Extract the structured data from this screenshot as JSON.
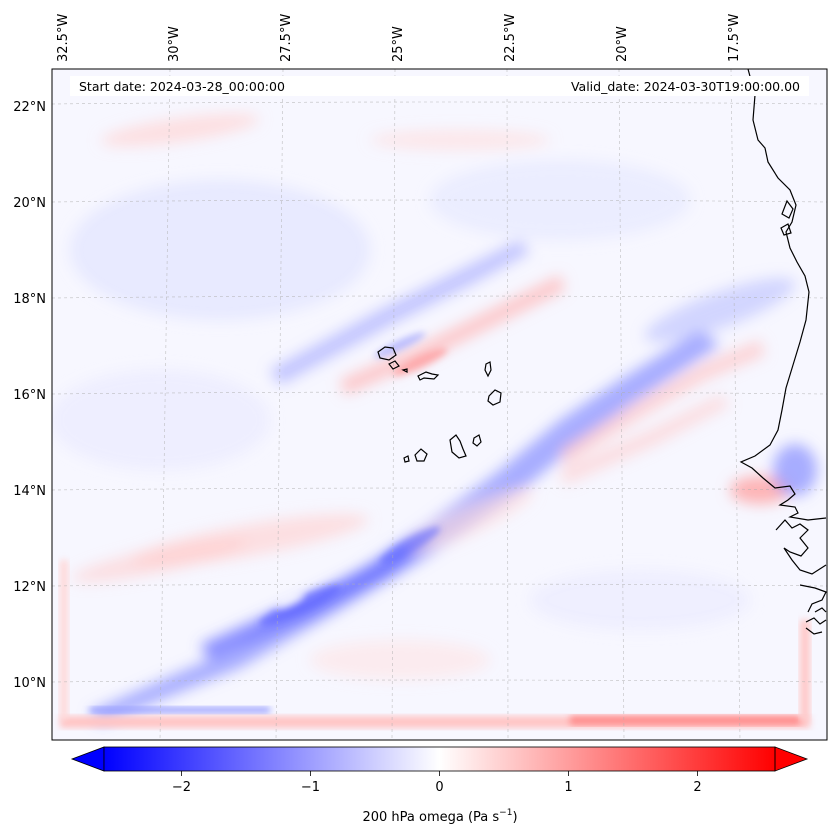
{
  "map": {
    "start_date_label": "Start date: 2024-03-28_00:00:00",
    "valid_date_label": "Valid_date: 2024-03-30T19:00:00.00",
    "lon_ticks": [
      "32.5°W",
      "30°W",
      "27.5°W",
      "25°W",
      "22.5°W",
      "20°W",
      "17.5°W"
    ],
    "lat_ticks": [
      "22°N",
      "20°N",
      "18°N",
      "16°N",
      "14°N",
      "12°N",
      "10°N"
    ],
    "islands": [
      "Santo Antão",
      "São Vicente",
      "Santa Luzia",
      "São Nicolau",
      "Sal",
      "Boa Vista",
      "Maio",
      "Santiago",
      "Fogo",
      "Brava"
    ]
  },
  "colorbar": {
    "ticks": [
      "−2",
      "−1",
      "0",
      "1",
      "2"
    ],
    "tick_values": [
      -2,
      -1,
      0,
      1,
      2
    ],
    "range": [
      -2.6,
      2.6
    ],
    "label": "200 hPa omega (Pa s",
    "label_sup": "−1",
    "label_end": ")",
    "min_color": "#0000ff",
    "mid_color": "#ffffff",
    "max_color": "#ff0000"
  }
}
